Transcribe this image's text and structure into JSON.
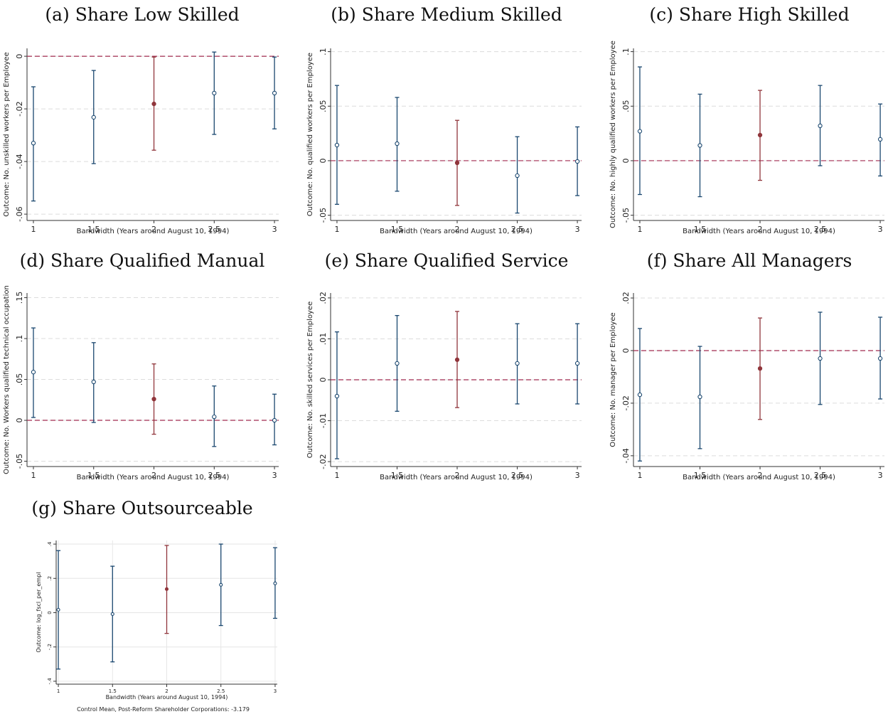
{
  "chart_data": [
    {
      "type": "errorbar",
      "title": "(a) Share Low Skilled",
      "xlabel": "Bandwidth (Years around August 10, 1994)",
      "ylabel": "Outcome: No. unskilled workers per Employee",
      "x": [
        1,
        1.5,
        2,
        2.5,
        3
      ],
      "values": [
        -0.033,
        -0.0232,
        -0.0181,
        -0.014,
        -0.014
      ],
      "lower": [
        -0.055,
        -0.0408,
        -0.0357,
        -0.0297,
        -0.0276
      ],
      "upper": [
        -0.0116,
        -0.0054,
        -0.0003,
        0.0016,
        -0.0003
      ],
      "colors": [
        "#1a476f",
        "#1a476f",
        "#90353b",
        "#1a476f",
        "#1a476f"
      ],
      "xlim": [
        0.947,
        3.035
      ],
      "xticks": [
        1,
        1.5,
        2,
        2.5,
        3
      ],
      "ylim": [
        -0.0624,
        0.003
      ],
      "yticks": [
        0,
        {
          "value": -0.02,
          "label": "-.02"
        },
        {
          "value": -0.04,
          "label": "-.04"
        },
        {
          "value": -0.06,
          "label": "-.06"
        }
      ],
      "grid": "dashed",
      "refline": 0,
      "refline_color": "#a02b4f"
    },
    {
      "type": "errorbar",
      "title": "(b) Share Medium Skilled",
      "xlabel": "Bandwidth (Years around August 10, 1994)",
      "ylabel": "Outcome: No. qualified workers per Employee",
      "x": [
        1,
        1.5,
        2,
        2.5,
        3
      ],
      "values": [
        0.0143,
        0.0156,
        -0.002,
        -0.0137,
        -0.0007
      ],
      "lower": [
        -0.04,
        -0.028,
        -0.041,
        -0.048,
        -0.032
      ],
      "upper": [
        0.069,
        0.058,
        0.037,
        0.022,
        0.031
      ],
      "colors": [
        "#1a476f",
        "#1a476f",
        "#90353b",
        "#1a476f",
        "#1a476f"
      ],
      "xlim": [
        0.947,
        3.035
      ],
      "xticks": [
        1,
        1.5,
        2,
        2.5,
        3
      ],
      "ylim": [
        -0.0548,
        0.103
      ],
      "yticks": [
        {
          "value": 0.1,
          "label": ".1"
        },
        {
          "value": 0.05,
          "label": ".05"
        },
        0,
        {
          "value": -0.05,
          "label": "-.05"
        }
      ],
      "grid": "dashed",
      "refline": 0,
      "refline_color": "#a02b4f"
    },
    {
      "type": "errorbar",
      "title": "(c) Share High Skilled",
      "xlabel": "Bandwidth (Years around August 10, 1994)",
      "ylabel": "Outcome: No. highly qualified workers per Employee",
      "x": [
        1,
        1.5,
        2,
        2.5,
        3
      ],
      "values": [
        0.027,
        0.014,
        0.0235,
        0.032,
        0.0196
      ],
      "lower": [
        -0.031,
        -0.033,
        -0.018,
        -0.0046,
        -0.014
      ],
      "upper": [
        0.086,
        0.061,
        0.0645,
        0.069,
        0.052
      ],
      "colors": [
        "#1a476f",
        "#1a476f",
        "#90353b",
        "#1a476f",
        "#1a476f"
      ],
      "xlim": [
        0.947,
        3.035
      ],
      "xticks": [
        1,
        1.5,
        2,
        2.5,
        3
      ],
      "ylim": [
        -0.0548,
        0.103
      ],
      "yticks": [
        {
          "value": 0.1,
          "label": ".1"
        },
        {
          "value": 0.05,
          "label": ".05"
        },
        0,
        {
          "value": -0.05,
          "label": "-.05"
        }
      ],
      "grid": "dashed",
      "refline": 0,
      "refline_color": "#a02b4f"
    },
    {
      "type": "errorbar",
      "title": "(d) Share Qualified Manual",
      "xlabel": "Bandwidth (Years around August 10, 1994)",
      "ylabel": "Outcome: No. Workers qualified technical occupation",
      "x": [
        1,
        1.5,
        2,
        2.5,
        3
      ],
      "values": [
        0.059,
        0.047,
        0.026,
        0.0043,
        0
      ],
      "lower": [
        0.0035,
        -0.0026,
        -0.017,
        -0.032,
        -0.03
      ],
      "upper": [
        0.113,
        0.095,
        0.069,
        0.042,
        0.032
      ],
      "colors": [
        "#1a476f",
        "#1a476f",
        "#90353b",
        "#1a476f",
        "#1a476f"
      ],
      "xlim": [
        0.947,
        3.035
      ],
      "xticks": [
        1,
        1.5,
        2,
        2.5,
        3
      ],
      "ylim": [
        -0.0565,
        0.1557
      ],
      "yticks": [
        {
          "value": 0.15,
          "label": ".15"
        },
        {
          "value": 0.1,
          "label": ".1"
        },
        {
          "value": 0.05,
          "label": ".05"
        },
        0,
        {
          "value": -0.05,
          "label": "-.05"
        }
      ],
      "grid": "dashed",
      "refline": 0,
      "refline_color": "#a02b4f"
    },
    {
      "type": "errorbar",
      "title": "(e) Share Qualified Service",
      "xlabel": "Bandwidth (Years around August 10, 1994)",
      "ylabel": "Outcome: No. skilled services per Employee",
      "x": [
        1,
        1.5,
        2,
        2.5,
        3
      ],
      "values": [
        -0.004,
        0.004,
        0.0049,
        0.004,
        0.004
      ],
      "lower": [
        -0.0193,
        -0.0077,
        -0.0068,
        -0.0059,
        -0.0059
      ],
      "upper": [
        0.0117,
        0.0157,
        0.0167,
        0.0137,
        0.0137
      ],
      "colors": [
        "#1a476f",
        "#1a476f",
        "#90353b",
        "#1a476f",
        "#1a476f"
      ],
      "xlim": [
        0.947,
        3.035
      ],
      "xticks": [
        1,
        1.5,
        2,
        2.5,
        3
      ],
      "ylim": [
        -0.0212,
        0.0212
      ],
      "yticks": [
        {
          "value": 0.02,
          "label": ".02"
        },
        {
          "value": 0.01,
          "label": ".01"
        },
        0,
        {
          "value": -0.01,
          "label": "-.01"
        },
        {
          "value": -0.02,
          "label": "-.02"
        }
      ],
      "grid": "dashed",
      "refline": 0,
      "refline_color": "#a02b4f"
    },
    {
      "type": "errorbar",
      "title": "(f) Share All Managers",
      "xlabel": "Bandwidth (Years around August 10, 1994)",
      "ylabel": "Outcome: No. manager per Employee",
      "x": [
        1,
        1.5,
        2,
        2.5,
        3
      ],
      "values": [
        -0.0168,
        -0.0176,
        -0.0068,
        -0.003,
        -0.003
      ],
      "lower": [
        -0.042,
        -0.0373,
        -0.0262,
        -0.0205,
        -0.0184
      ],
      "upper": [
        0.0084,
        0.0016,
        0.0124,
        0.0146,
        0.0127
      ],
      "colors": [
        "#1a476f",
        "#1a476f",
        "#90353b",
        "#1a476f",
        "#1a476f"
      ],
      "xlim": [
        0.947,
        3.035
      ],
      "xticks": [
        1,
        1.5,
        2,
        2.5,
        3
      ],
      "ylim": [
        -0.0441,
        0.0219
      ],
      "yticks": [
        {
          "value": 0.02,
          "label": ".02"
        },
        0,
        {
          "value": -0.02,
          "label": "-.02"
        },
        {
          "value": -0.04,
          "label": "-.04"
        }
      ],
      "grid": "dashed",
      "refline": 0,
      "refline_color": "#a02b4f"
    },
    {
      "type": "errorbar",
      "title": "(g) Share Outsourceable",
      "xlabel": "Bandwidth (Years around August 10, 1994)",
      "ylabel": "Outcome: log_fscl_per_empl",
      "note": "Control Mean, Post-Reform Shareholder Corporations: -3.179",
      "x": [
        1,
        1.5,
        2,
        2.5,
        3
      ],
      "values": [
        0.017,
        -0.008,
        0.1375,
        0.1625,
        0.171
      ],
      "lower": [
        -0.329,
        -0.287,
        -0.121,
        -0.075,
        -0.033
      ],
      "upper": [
        0.362,
        0.271,
        0.392,
        0.4,
        0.379
      ],
      "colors": [
        "#1a476f",
        "#1a476f",
        "#90353b",
        "#1a476f",
        "#1a476f"
      ],
      "xlim": [
        0.98,
        3.02
      ],
      "xticks": [
        1,
        1.5,
        2,
        2.5,
        3
      ],
      "ylim": [
        -0.417,
        0.421
      ],
      "yticks": [
        {
          "value": 0.4,
          "label": ".4"
        },
        {
          "value": 0.2,
          "label": ".2"
        },
        0,
        {
          "value": -0.2,
          "label": "-.2"
        },
        {
          "value": -0.4,
          "label": "-.4"
        }
      ],
      "grid": "solid",
      "xgrid": true
    }
  ]
}
